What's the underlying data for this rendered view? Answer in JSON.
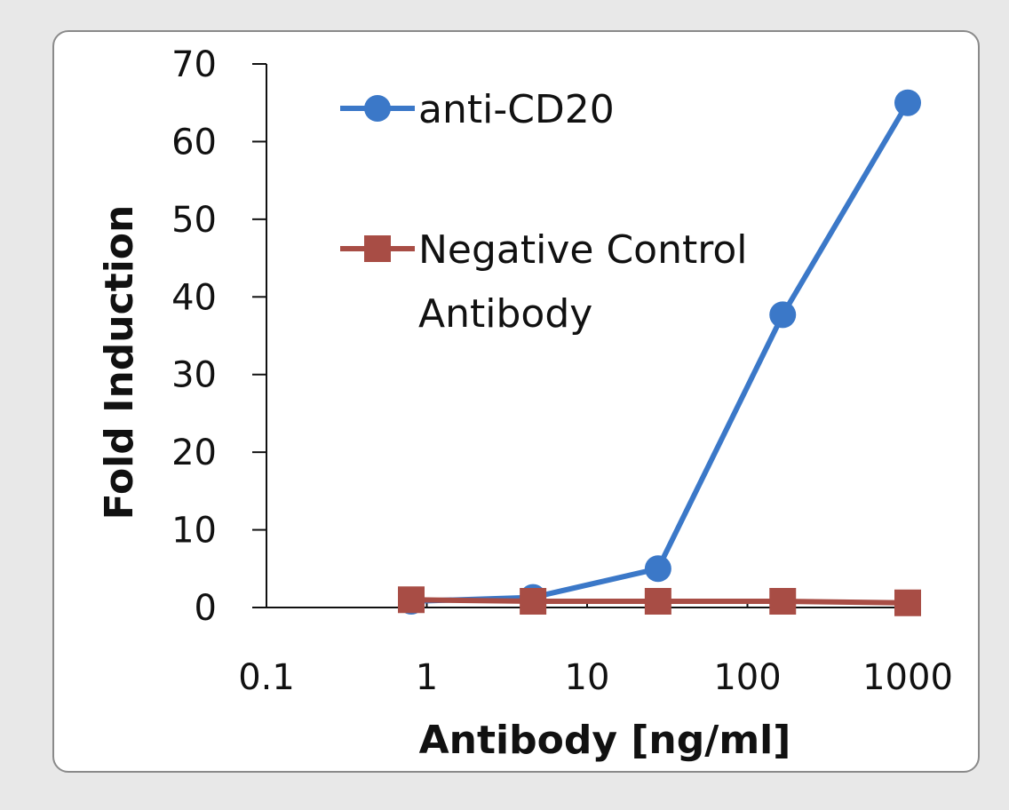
{
  "chart_data": {
    "type": "line",
    "title": "",
    "xlabel": "Antibody [ng/ml]",
    "ylabel": "Fold Induction",
    "xscale": "log",
    "xlim": [
      0.1,
      1000
    ],
    "ylim": [
      0,
      70
    ],
    "xticks": [
      {
        "value": 0.1,
        "label": "0.1"
      },
      {
        "value": 1,
        "label": "1"
      },
      {
        "value": 10,
        "label": "10"
      },
      {
        "value": 100,
        "label": "100"
      },
      {
        "value": 1000,
        "label": "1000"
      }
    ],
    "yticks": [
      {
        "value": 0,
        "label": "0"
      },
      {
        "value": 10,
        "label": "10"
      },
      {
        "value": 20,
        "label": "20"
      },
      {
        "value": 30,
        "label": "30"
      },
      {
        "value": 40,
        "label": "40"
      },
      {
        "value": 50,
        "label": "50"
      },
      {
        "value": 60,
        "label": "60"
      },
      {
        "value": 70,
        "label": "70"
      }
    ],
    "grid": false,
    "legend_position": "top-left",
    "series": [
      {
        "name": "anti-CD20",
        "legend_lines": [
          "anti-CD20"
        ],
        "marker": "circle",
        "color": "#3b78c8",
        "x": [
          0.8,
          4.6,
          27.7,
          166,
          1000
        ],
        "y": [
          0.8,
          1.3,
          5.0,
          37.7,
          65.0
        ]
      },
      {
        "name": "Negative Control Antibody",
        "legend_lines": [
          "Negative Control",
          "Antibody"
        ],
        "marker": "square",
        "color": "#a84d45",
        "x": [
          0.8,
          4.6,
          27.7,
          166,
          1000
        ],
        "y": [
          1.0,
          0.8,
          0.8,
          0.8,
          0.6
        ]
      }
    ]
  }
}
